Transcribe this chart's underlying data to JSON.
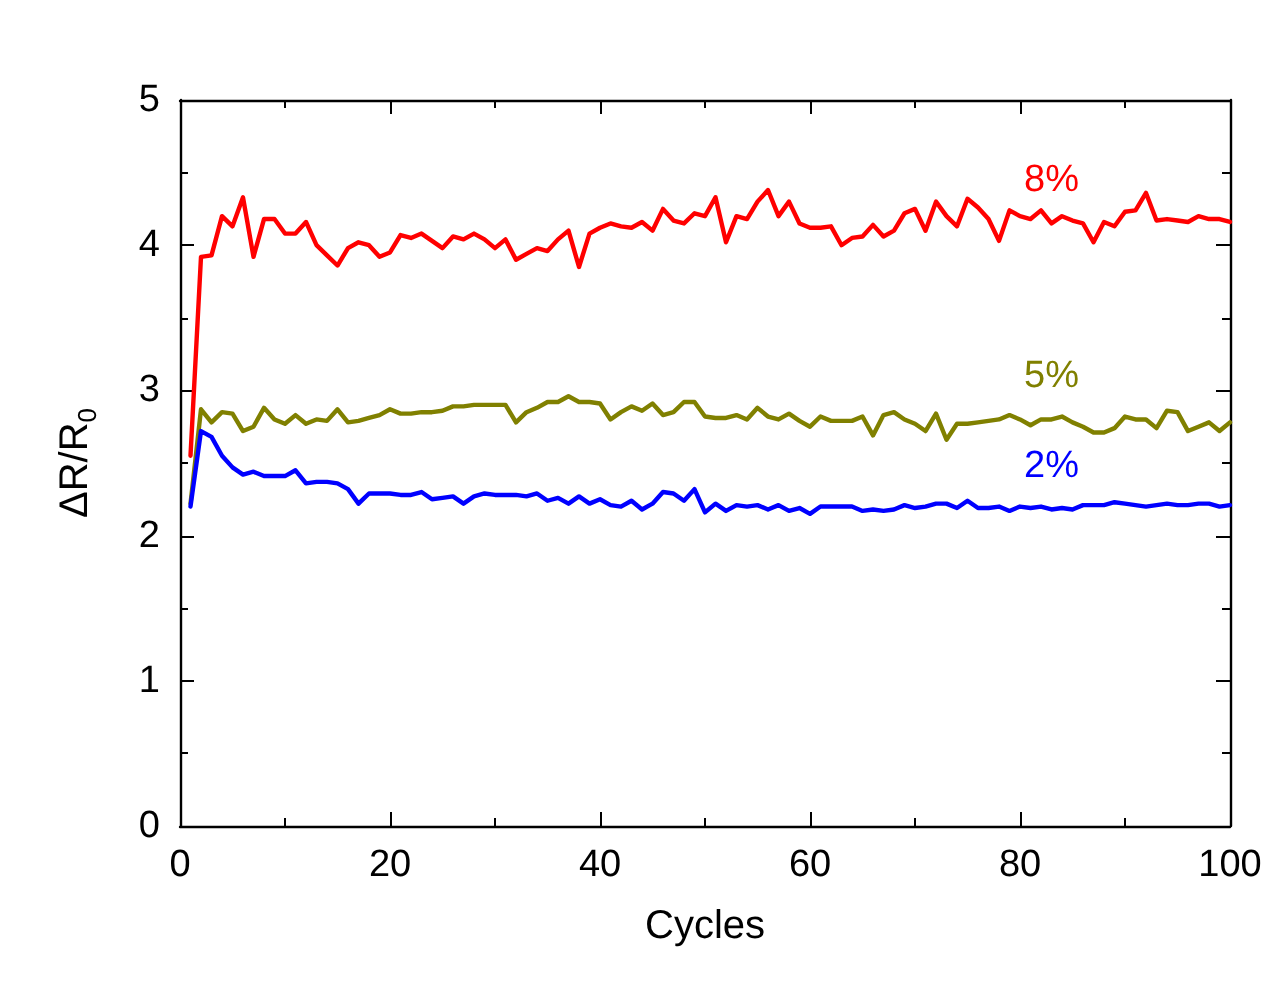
{
  "chart_data": {
    "type": "line",
    "xlabel": "Cycles",
    "ylabel": "ΔR/R$_{0}$",
    "x": [
      1,
      2,
      3,
      4,
      5,
      6,
      7,
      8,
      9,
      10,
      11,
      12,
      13,
      14,
      15,
      16,
      17,
      18,
      19,
      20,
      21,
      22,
      23,
      24,
      25,
      26,
      27,
      28,
      29,
      30,
      31,
      32,
      33,
      34,
      35,
      36,
      37,
      38,
      39,
      40,
      41,
      42,
      43,
      44,
      45,
      46,
      47,
      48,
      49,
      50,
      51,
      52,
      53,
      54,
      55,
      56,
      57,
      58,
      59,
      60,
      61,
      62,
      63,
      64,
      65,
      66,
      67,
      68,
      69,
      70,
      71,
      72,
      73,
      74,
      75,
      76,
      77,
      78,
      79,
      80,
      81,
      82,
      83,
      84,
      85,
      86,
      87,
      88,
      89,
      90,
      91,
      92,
      93,
      94,
      95,
      96,
      97,
      98,
      99,
      100
    ],
    "series": [
      {
        "name": "8%",
        "color": "#ff0000",
        "values": [
          2.55,
          3.92,
          3.93,
          4.2,
          4.13,
          4.33,
          3.92,
          4.18,
          4.18,
          4.08,
          4.08,
          4.16,
          4.0,
          3.93,
          3.86,
          3.98,
          4.02,
          4.0,
          3.92,
          3.95,
          4.07,
          4.05,
          4.08,
          4.03,
          3.98,
          4.06,
          4.04,
          4.08,
          4.04,
          3.98,
          4.04,
          3.9,
          3.94,
          3.98,
          3.96,
          4.04,
          4.1,
          3.85,
          4.08,
          4.12,
          4.15,
          4.13,
          4.12,
          4.16,
          4.1,
          4.25,
          4.17,
          4.15,
          4.22,
          4.2,
          4.33,
          4.02,
          4.2,
          4.18,
          4.3,
          4.38,
          4.2,
          4.3,
          4.15,
          4.12,
          4.12,
          4.13,
          4.0,
          4.05,
          4.06,
          4.14,
          4.06,
          4.1,
          4.22,
          4.25,
          4.1,
          4.3,
          4.2,
          4.13,
          4.32,
          4.26,
          4.18,
          4.03,
          4.24,
          4.2,
          4.18,
          4.24,
          4.15,
          4.2,
          4.17,
          4.15,
          4.02,
          4.16,
          4.13,
          4.23,
          4.24,
          4.36,
          4.17,
          4.18,
          4.17,
          4.16,
          4.2,
          4.18,
          4.18,
          4.16
        ]
      },
      {
        "name": "5%",
        "color": "#808000",
        "values": [
          2.22,
          2.87,
          2.78,
          2.85,
          2.84,
          2.72,
          2.75,
          2.88,
          2.8,
          2.77,
          2.83,
          2.77,
          2.8,
          2.79,
          2.87,
          2.78,
          2.79,
          2.81,
          2.83,
          2.87,
          2.84,
          2.84,
          2.85,
          2.85,
          2.86,
          2.89,
          2.89,
          2.9,
          2.9,
          2.9,
          2.9,
          2.78,
          2.85,
          2.88,
          2.92,
          2.92,
          2.96,
          2.92,
          2.92,
          2.91,
          2.8,
          2.85,
          2.89,
          2.86,
          2.91,
          2.83,
          2.85,
          2.92,
          2.92,
          2.82,
          2.81,
          2.81,
          2.83,
          2.8,
          2.88,
          2.82,
          2.8,
          2.84,
          2.79,
          2.75,
          2.82,
          2.79,
          2.79,
          2.79,
          2.82,
          2.69,
          2.83,
          2.85,
          2.8,
          2.77,
          2.72,
          2.84,
          2.66,
          2.77,
          2.77,
          2.78,
          2.79,
          2.8,
          2.83,
          2.8,
          2.76,
          2.8,
          2.8,
          2.82,
          2.78,
          2.75,
          2.71,
          2.71,
          2.74,
          2.82,
          2.8,
          2.8,
          2.74,
          2.86,
          2.85,
          2.72,
          2.75,
          2.78,
          2.72,
          2.78
        ]
      },
      {
        "name": "2%",
        "color": "#0000ff",
        "values": [
          2.2,
          2.72,
          2.68,
          2.55,
          2.47,
          2.42,
          2.44,
          2.41,
          2.41,
          2.41,
          2.45,
          2.36,
          2.37,
          2.37,
          2.36,
          2.32,
          2.22,
          2.29,
          2.29,
          2.29,
          2.28,
          2.28,
          2.3,
          2.25,
          2.26,
          2.27,
          2.22,
          2.27,
          2.29,
          2.28,
          2.28,
          2.28,
          2.27,
          2.29,
          2.24,
          2.26,
          2.22,
          2.27,
          2.22,
          2.25,
          2.21,
          2.2,
          2.24,
          2.18,
          2.22,
          2.3,
          2.29,
          2.24,
          2.32,
          2.16,
          2.22,
          2.17,
          2.21,
          2.2,
          2.21,
          2.18,
          2.21,
          2.17,
          2.19,
          2.15,
          2.2,
          2.2,
          2.2,
          2.2,
          2.17,
          2.18,
          2.17,
          2.18,
          2.21,
          2.19,
          2.2,
          2.22,
          2.22,
          2.19,
          2.24,
          2.19,
          2.19,
          2.2,
          2.17,
          2.2,
          2.19,
          2.2,
          2.18,
          2.19,
          2.18,
          2.21,
          2.21,
          2.21,
          2.23,
          2.22,
          2.21,
          2.2,
          2.21,
          2.22,
          2.21,
          2.21,
          2.22,
          2.22,
          2.2,
          2.21
        ]
      }
    ],
    "xlim": [
      0,
      100
    ],
    "xticks": [
      0,
      20,
      40,
      60,
      80,
      100
    ],
    "ylim": [
      0,
      5
    ],
    "yticks": [
      0,
      1,
      2,
      3,
      4,
      5
    ],
    "grid": false,
    "legend": false,
    "marker": "none",
    "line_style": "solid"
  }
}
